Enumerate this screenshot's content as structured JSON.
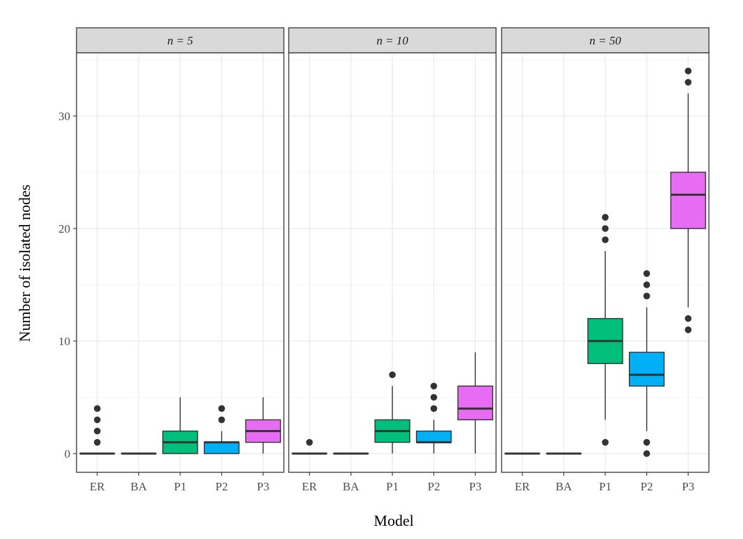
{
  "chart_data": {
    "type": "boxplot",
    "xlabel": "Model",
    "ylabel": "Number of isolated nodes",
    "ylim": [
      -1.7,
      35.6
    ],
    "y_ticks": [
      "0",
      "10",
      "20",
      "30"
    ],
    "categories": [
      "ER",
      "BA",
      "P1",
      "P2",
      "P3"
    ],
    "colors": {
      "ER": "#F8766D",
      "BA": "#A3A500",
      "P1": "#00BF7D",
      "P2": "#00B0F6",
      "P3": "#E76BF3"
    },
    "grid": true,
    "legend": "none",
    "panels": [
      {
        "strip_label": "n = 5",
        "boxes": [
          {
            "category": "ER",
            "min": 0,
            "q1": 0,
            "median": 0,
            "q3": 0,
            "max": 0,
            "outliers": [
              1,
              2,
              3,
              4
            ]
          },
          {
            "category": "BA",
            "min": 0,
            "q1": 0,
            "median": 0,
            "q3": 0,
            "max": 0,
            "outliers": []
          },
          {
            "category": "P1",
            "min": 0,
            "q1": 0,
            "median": 1,
            "q3": 2,
            "max": 5,
            "outliers": []
          },
          {
            "category": "P2",
            "min": 0,
            "q1": 0,
            "median": 1,
            "q3": 1,
            "max": 2,
            "outliers": [
              3,
              4
            ]
          },
          {
            "category": "P3",
            "min": 0,
            "q1": 1,
            "median": 2,
            "q3": 3,
            "max": 5,
            "outliers": []
          }
        ]
      },
      {
        "strip_label": "n = 10",
        "boxes": [
          {
            "category": "ER",
            "min": 0,
            "q1": 0,
            "median": 0,
            "q3": 0,
            "max": 0,
            "outliers": [
              1
            ]
          },
          {
            "category": "BA",
            "min": 0,
            "q1": 0,
            "median": 0,
            "q3": 0,
            "max": 0,
            "outliers": []
          },
          {
            "category": "P1",
            "min": 0,
            "q1": 1,
            "median": 2,
            "q3": 3,
            "max": 6,
            "outliers": [
              7
            ]
          },
          {
            "category": "P2",
            "min": 0,
            "q1": 1,
            "median": 1,
            "q3": 2,
            "max": 3,
            "outliers": [
              4,
              5,
              6
            ]
          },
          {
            "category": "P3",
            "min": 0,
            "q1": 3,
            "median": 4,
            "q3": 6,
            "max": 9,
            "outliers": []
          }
        ]
      },
      {
        "strip_label": "n = 50",
        "boxes": [
          {
            "category": "ER",
            "min": 0,
            "q1": 0,
            "median": 0,
            "q3": 0,
            "max": 0,
            "outliers": []
          },
          {
            "category": "BA",
            "min": 0,
            "q1": 0,
            "median": 0,
            "q3": 0,
            "max": 0,
            "outliers": []
          },
          {
            "category": "P1",
            "min": 3,
            "q1": 8,
            "median": 10,
            "q3": 12,
            "max": 18,
            "outliers": [
              1,
              19,
              20,
              21
            ]
          },
          {
            "category": "P2",
            "min": 2,
            "q1": 6,
            "median": 7,
            "q3": 9,
            "max": 13,
            "outliers": [
              0,
              1,
              14,
              15,
              16
            ]
          },
          {
            "category": "P3",
            "min": 13,
            "q1": 20,
            "median": 23,
            "q3": 25,
            "max": 32,
            "outliers": [
              11,
              12,
              33,
              34
            ]
          }
        ]
      }
    ]
  }
}
